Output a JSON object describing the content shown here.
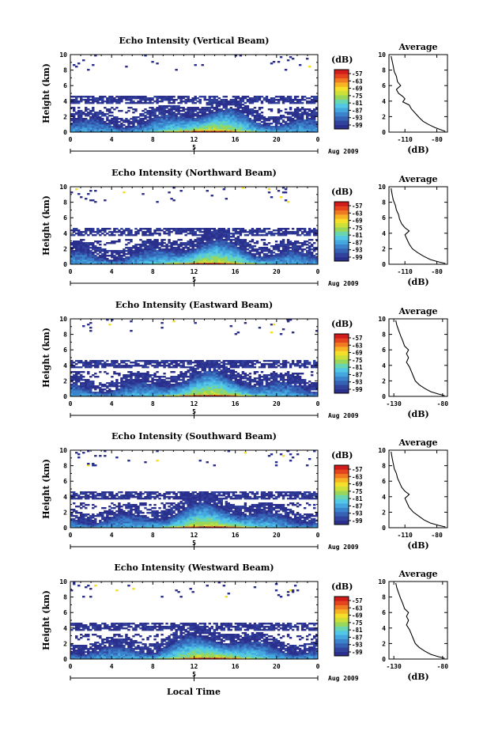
{
  "figure": {
    "xlabel": "Local Time",
    "date_label": "Aug 2009",
    "day_label": "5",
    "colorbar_label": "(dB)",
    "colorbar_ticks": [
      "-57",
      "-63",
      "-69",
      "-75",
      "-81",
      "-87",
      "-93",
      "-99"
    ],
    "colormap": [
      "#2b2f8c",
      "#30429c",
      "#3562b4",
      "#3b83cc",
      "#44a7de",
      "#52c7e6",
      "#6ad6b0",
      "#9ad65a",
      "#cde03a",
      "#f4df2a",
      "#f6b324",
      "#f07a22",
      "#e4451e",
      "#d11c1c"
    ]
  },
  "chart_data": [
    {
      "type": "heatmap",
      "title": "Echo Intensity (Vertical Beam)",
      "ylabel": "Height (km)",
      "xlim": [
        0,
        24
      ],
      "ylim": [
        0,
        10
      ],
      "x_ticks": [
        "0",
        "4",
        "8",
        "12",
        "16",
        "20",
        "0"
      ],
      "y_ticks": [
        "0",
        "2",
        "4",
        "6",
        "8",
        "10"
      ],
      "value_range_db": [
        -99,
        -57
      ],
      "avg_profile": {
        "title": "Average",
        "xlabel": "(dB)",
        "x_ticks": [
          "-110",
          "-80"
        ],
        "xlim": [
          -125,
          -70
        ],
        "points": [
          [
            -72,
            0.1
          ],
          [
            -76,
            0.3
          ],
          [
            -82,
            0.6
          ],
          [
            -88,
            1.0
          ],
          [
            -93,
            1.4
          ],
          [
            -96,
            1.8
          ],
          [
            -100,
            2.4
          ],
          [
            -104,
            3.0
          ],
          [
            -106,
            3.5
          ],
          [
            -112,
            3.9
          ],
          [
            -110,
            4.3
          ],
          [
            -112,
            4.6
          ],
          [
            -116,
            5.0
          ],
          [
            -118,
            5.5
          ],
          [
            -114,
            6.0
          ],
          [
            -117,
            6.5
          ],
          [
            -118,
            7.2
          ],
          [
            -120,
            7.8
          ],
          [
            -121,
            8.5
          ],
          [
            -122,
            9.2
          ],
          [
            -123,
            9.8
          ]
        ]
      }
    },
    {
      "type": "heatmap",
      "title": "Echo Intensity (Northward Beam)",
      "ylabel": "Height (km)",
      "xlim": [
        0,
        24
      ],
      "ylim": [
        0,
        10
      ],
      "x_ticks": [
        "0",
        "4",
        "8",
        "12",
        "16",
        "20",
        "0"
      ],
      "y_ticks": [
        "0",
        "2",
        "4",
        "6",
        "8",
        "10"
      ],
      "value_range_db": [
        -99,
        -57
      ],
      "avg_profile": {
        "title": "Average",
        "xlabel": "(dB)",
        "x_ticks": [
          "-110",
          "-80"
        ],
        "xlim": [
          -125,
          -70
        ],
        "points": [
          [
            -72,
            0.1
          ],
          [
            -78,
            0.3
          ],
          [
            -86,
            0.6
          ],
          [
            -92,
            1.0
          ],
          [
            -98,
            1.5
          ],
          [
            -103,
            2.0
          ],
          [
            -106,
            2.6
          ],
          [
            -108,
            3.2
          ],
          [
            -110,
            3.8
          ],
          [
            -106,
            4.3
          ],
          [
            -110,
            4.7
          ],
          [
            -113,
            5.2
          ],
          [
            -115,
            5.8
          ],
          [
            -116,
            6.4
          ],
          [
            -118,
            7.0
          ],
          [
            -119,
            7.6
          ],
          [
            -121,
            8.3
          ],
          [
            -122,
            9.0
          ],
          [
            -123,
            9.8
          ]
        ]
      }
    },
    {
      "type": "heatmap",
      "title": "Echo Intensity (Eastward Beam)",
      "ylabel": "Height (km)",
      "xlim": [
        0,
        24
      ],
      "ylim": [
        0,
        10
      ],
      "x_ticks": [
        "0",
        "4",
        "8",
        "12",
        "16",
        "20",
        "0"
      ],
      "y_ticks": [
        "0",
        "2",
        "4",
        "6",
        "8",
        "10"
      ],
      "value_range_db": [
        -99,
        -57
      ],
      "avg_profile": {
        "title": "Average",
        "xlabel": "(dB)",
        "x_ticks": [
          "-130",
          "-80"
        ],
        "xlim": [
          -135,
          -75
        ],
        "points": [
          [
            -78,
            0.1
          ],
          [
            -84,
            0.3
          ],
          [
            -92,
            0.6
          ],
          [
            -98,
            1.0
          ],
          [
            -104,
            1.5
          ],
          [
            -108,
            2.0
          ],
          [
            -110,
            2.6
          ],
          [
            -112,
            3.2
          ],
          [
            -114,
            3.8
          ],
          [
            -117,
            4.4
          ],
          [
            -115,
            5.0
          ],
          [
            -117,
            5.5
          ],
          [
            -115,
            6.0
          ],
          [
            -119,
            6.5
          ],
          [
            -121,
            7.2
          ],
          [
            -123,
            7.8
          ],
          [
            -125,
            8.5
          ],
          [
            -127,
            9.2
          ],
          [
            -128,
            9.8
          ]
        ]
      }
    },
    {
      "type": "heatmap",
      "title": "Echo Intensity (Southward Beam)",
      "ylabel": "Height (km)",
      "xlim": [
        0,
        24
      ],
      "ylim": [
        0,
        10
      ],
      "x_ticks": [
        "0",
        "4",
        "8",
        "12",
        "16",
        "20",
        "0"
      ],
      "y_ticks": [
        "0",
        "2",
        "4",
        "6",
        "8",
        "10"
      ],
      "value_range_db": [
        -99,
        -57
      ],
      "avg_profile": {
        "title": "Average",
        "xlabel": "(dB)",
        "x_ticks": [
          "-110",
          "-80"
        ],
        "xlim": [
          -125,
          -70
        ],
        "points": [
          [
            -72,
            0.1
          ],
          [
            -78,
            0.3
          ],
          [
            -86,
            0.6
          ],
          [
            -92,
            1.0
          ],
          [
            -97,
            1.5
          ],
          [
            -102,
            2.0
          ],
          [
            -106,
            2.6
          ],
          [
            -108,
            3.2
          ],
          [
            -110,
            3.8
          ],
          [
            -106,
            4.3
          ],
          [
            -110,
            4.7
          ],
          [
            -113,
            5.2
          ],
          [
            -115,
            5.8
          ],
          [
            -117,
            6.4
          ],
          [
            -118,
            7.0
          ],
          [
            -120,
            7.6
          ],
          [
            -121,
            8.3
          ],
          [
            -122,
            9.0
          ],
          [
            -123,
            9.8
          ]
        ]
      }
    },
    {
      "type": "heatmap",
      "title": "Echo Intensity (Westward Beam)",
      "ylabel": "Height (km)",
      "xlim": [
        0,
        24
      ],
      "ylim": [
        0,
        10
      ],
      "x_ticks": [
        "0",
        "4",
        "8",
        "12",
        "16",
        "20",
        "0"
      ],
      "y_ticks": [
        "0",
        "2",
        "4",
        "6",
        "8",
        "10"
      ],
      "value_range_db": [
        -99,
        -57
      ],
      "avg_profile": {
        "title": "Average",
        "xlabel": "(dB)",
        "x_ticks": [
          "-130",
          "-80"
        ],
        "xlim": [
          -135,
          -75
        ],
        "points": [
          [
            -78,
            0.1
          ],
          [
            -84,
            0.3
          ],
          [
            -92,
            0.6
          ],
          [
            -98,
            1.0
          ],
          [
            -104,
            1.5
          ],
          [
            -108,
            2.0
          ],
          [
            -110,
            2.6
          ],
          [
            -112,
            3.2
          ],
          [
            -114,
            3.8
          ],
          [
            -117,
            4.4
          ],
          [
            -115,
            5.0
          ],
          [
            -117,
            5.5
          ],
          [
            -115,
            6.0
          ],
          [
            -119,
            6.5
          ],
          [
            -121,
            7.2
          ],
          [
            -123,
            7.8
          ],
          [
            -125,
            8.5
          ],
          [
            -127,
            9.2
          ],
          [
            -128,
            9.8
          ]
        ]
      }
    }
  ]
}
